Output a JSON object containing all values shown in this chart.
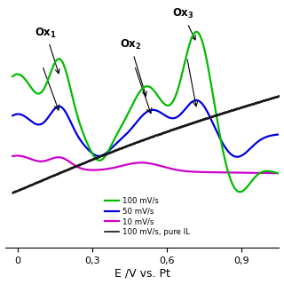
{
  "xlabel": "E /V vs. Pt",
  "xlim": [
    -0.05,
    1.05
  ],
  "ylim": [
    -0.55,
    0.85
  ],
  "xticks": [
    0.0,
    0.3,
    0.6,
    0.9
  ],
  "xticklabels": [
    "0",
    "0,3",
    "0,6",
    "0,9"
  ],
  "colors": {
    "green": "#00bb00",
    "blue": "#0000dd",
    "magenta": "#cc00cc",
    "black": "#111111"
  },
  "legend": [
    {
      "label": "100 mV/s",
      "color": "#00bb00"
    },
    {
      "label": "50 mV/s",
      "color": "#0000dd"
    },
    {
      "label": "10 mV/s",
      "color": "#cc00cc"
    },
    {
      "label": "100 mV/s, pure IL",
      "color": "#111111"
    }
  ]
}
